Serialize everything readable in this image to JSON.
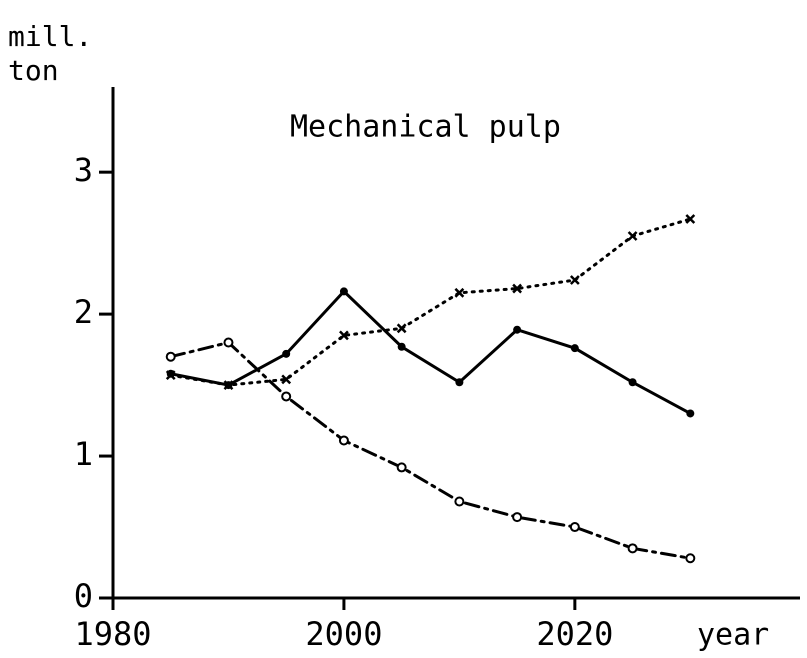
{
  "chart_data": {
    "type": "line",
    "title": "Mechanical pulp",
    "y_label": [
      "mill.",
      "ton"
    ],
    "x_label": "year",
    "xlim": [
      1980,
      2039.5
    ],
    "xticks": [
      1980,
      2000,
      2020
    ],
    "ylim": [
      0,
      3.6
    ],
    "yticks": [
      0,
      1,
      2,
      3
    ],
    "grid": false,
    "x": [
      1985,
      1990,
      1995,
      2000,
      2005,
      2010,
      2015,
      2020,
      2025,
      2030
    ],
    "series": [
      {
        "color": "#000000",
        "dash": "solid",
        "marker": "dot",
        "values": [
          1.58,
          1.5,
          1.72,
          2.16,
          1.77,
          1.52,
          1.89,
          1.76,
          1.52,
          1.3
        ]
      },
      {
        "color": "#000000",
        "dash": "dotted",
        "marker": "cross",
        "values": [
          1.57,
          1.5,
          1.54,
          1.85,
          1.9,
          2.15,
          2.18,
          2.24,
          2.55,
          2.67
        ]
      },
      {
        "color": "#000000",
        "dash": "dashdot",
        "marker": "circle",
        "values": [
          1.7,
          1.8,
          1.42,
          1.11,
          0.92,
          0.68,
          0.57,
          0.5,
          0.35,
          0.28
        ]
      }
    ]
  }
}
